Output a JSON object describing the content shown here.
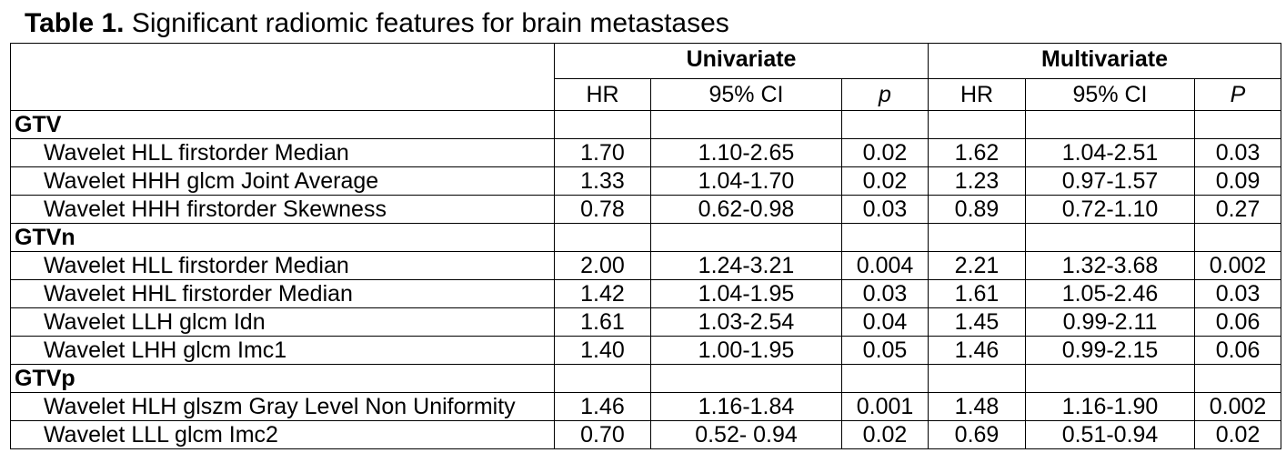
{
  "caption": {
    "label": "Table 1.",
    "text": " Significant radiomic features for brain metastases"
  },
  "header": {
    "univariate": "Univariate",
    "multivariate": "Multivariate",
    "columns": [
      "HR",
      "95% CI",
      "p",
      "HR",
      "95% CI",
      "P"
    ]
  },
  "groups": [
    {
      "label": "GTV",
      "rows": [
        {
          "feature": "Wavelet HLL firstorder Median",
          "cells": [
            "1.70",
            "1.10-2.65",
            "0.02",
            "1.62",
            "1.04-2.51",
            "0.03"
          ]
        },
        {
          "feature": "Wavelet HHH glcm Joint Average",
          "cells": [
            "1.33",
            "1.04-1.70",
            "0.02",
            "1.23",
            "0.97-1.57",
            "0.09"
          ]
        },
        {
          "feature": "Wavelet HHH firstorder Skewness",
          "cells": [
            "0.78",
            "0.62-0.98",
            "0.03",
            "0.89",
            "0.72-1.10",
            "0.27"
          ]
        }
      ]
    },
    {
      "label": "GTVn",
      "rows": [
        {
          "feature": "Wavelet HLL firstorder Median",
          "cells": [
            "2.00",
            "1.24-3.21",
            "0.004",
            "2.21",
            "1.32-3.68",
            "0.002"
          ]
        },
        {
          "feature": "Wavelet HHL firstorder Median",
          "cells": [
            "1.42",
            "1.04-1.95",
            "0.03",
            "1.61",
            "1.05-2.46",
            "0.03"
          ]
        },
        {
          "feature": "Wavelet LLH glcm Idn",
          "cells": [
            "1.61",
            "1.03-2.54",
            "0.04",
            "1.45",
            "0.99-2.11",
            "0.06"
          ]
        },
        {
          "feature": "Wavelet LHH glcm Imc1",
          "cells": [
            "1.40",
            "1.00-1.95",
            "0.05",
            "1.46",
            "0.99-2.15",
            "0.06"
          ]
        }
      ]
    },
    {
      "label": "GTVp",
      "rows": [
        {
          "feature": "Wavelet HLH glszm Gray Level Non Uniformity",
          "cells": [
            "1.46",
            "1.16-1.84",
            "0.001",
            "1.48",
            "1.16-1.90",
            "0.002"
          ]
        },
        {
          "feature": "Wavelet LLL glcm Imc2",
          "cells": [
            "0.70",
            "0.52- 0.94",
            "0.02",
            "0.69",
            "0.51-0.94",
            "0.02"
          ]
        }
      ]
    }
  ]
}
